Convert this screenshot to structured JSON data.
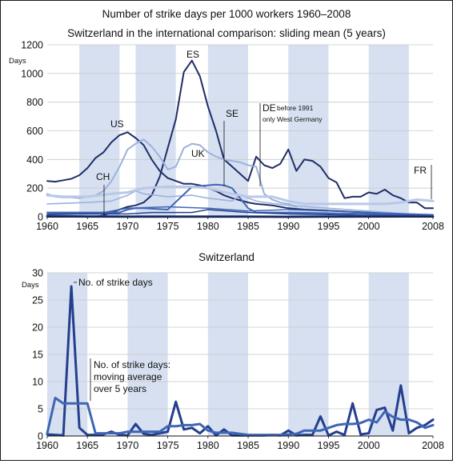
{
  "title_line1": "Number of strike days per 1000 workers 1960–2008",
  "title_line2": "Switzerland in the international comparison: sliding mean (5 years)",
  "colors": {
    "band": "#d7e0f1",
    "grid": "#c9c9c9",
    "dark_navy": "#1f2f66",
    "navy": "#233f8e",
    "mid_blue": "#3f66b4",
    "light_blue": "#9bb2dd",
    "pale_blue": "#b9c8e8"
  },
  "chart_data": [
    {
      "type": "line",
      "title": "",
      "ylabel": "Days",
      "ylim": [
        0,
        1200
      ],
      "xlim": [
        1960,
        2008
      ],
      "y_ticks": [
        "0",
        "200",
        "400",
        "600",
        "800",
        "1000",
        "1200"
      ],
      "x_ticks": [
        "1960",
        "1965",
        "1970",
        "1975",
        "1980",
        "1985",
        "1990",
        "1995",
        "2000",
        "2008"
      ],
      "shaded_bands": [
        [
          1964,
          1969
        ],
        [
          1971,
          1976
        ],
        [
          1980,
          1985
        ],
        [
          1990,
          1995
        ],
        [
          2000,
          2005
        ]
      ],
      "series": [
        {
          "name": "US",
          "color": "dark_navy",
          "x": [
            1960,
            1961,
            1962,
            1963,
            1964,
            1965,
            1966,
            1967,
            1968,
            1969,
            1970,
            1971,
            1972,
            1973,
            1974,
            1975,
            1976,
            1977,
            1978,
            1979,
            1980,
            1981,
            1982,
            1983,
            1984,
            1985,
            1986,
            1987,
            1988,
            1989,
            1990,
            1992,
            1994,
            1996,
            1998,
            2000,
            2002,
            2004,
            2006,
            2008
          ],
          "y": [
            250,
            245,
            255,
            265,
            290,
            340,
            410,
            450,
            520,
            570,
            590,
            550,
            500,
            400,
            320,
            270,
            250,
            230,
            230,
            220,
            200,
            180,
            150,
            130,
            115,
            100,
            90,
            85,
            80,
            70,
            60,
            50,
            45,
            40,
            35,
            30,
            25,
            20,
            15,
            12
          ]
        },
        {
          "name": "ES",
          "color": "dark_navy",
          "x": [
            1960,
            1966,
            1967,
            1968,
            1969,
            1970,
            1971,
            1972,
            1973,
            1974,
            1975,
            1976,
            1977,
            1978,
            1979,
            1980,
            1981,
            1982,
            1983,
            1984,
            1985,
            1986,
            1987,
            1988,
            1989,
            1990,
            1991,
            1992,
            1993,
            1994,
            1995,
            1996,
            1997,
            1998,
            1999,
            2000,
            2001,
            2002,
            2003,
            2004,
            2005,
            2006,
            2007,
            2008
          ],
          "y": [
            0,
            0,
            10,
            30,
            50,
            70,
            80,
            100,
            150,
            280,
            480,
            680,
            1010,
            1090,
            980,
            770,
            600,
            400,
            350,
            300,
            250,
            420,
            360,
            340,
            370,
            470,
            320,
            400,
            390,
            350,
            270,
            240,
            130,
            140,
            140,
            170,
            160,
            190,
            150,
            130,
            100,
            100,
            60,
            60
          ]
        },
        {
          "name": "UK",
          "color": "light_blue",
          "x": [
            1960,
            1961,
            1962,
            1963,
            1964,
            1965,
            1966,
            1967,
            1968,
            1969,
            1970,
            1971,
            1972,
            1973,
            1974,
            1975,
            1976,
            1977,
            1978,
            1979,
            1980,
            1981,
            1982,
            1983,
            1984,
            1985,
            1986,
            1987,
            1988,
            1989,
            1990,
            1991
          ],
          "y": [
            160,
            140,
            135,
            135,
            130,
            140,
            150,
            180,
            250,
            350,
            470,
            510,
            540,
            490,
            420,
            330,
            350,
            480,
            510,
            500,
            450,
            420,
            400,
            390,
            380,
            360,
            350,
            160,
            120,
            100,
            90,
            70
          ]
        },
        {
          "name": "DE before 1991 only West Germany",
          "color": "light_blue",
          "x": [
            1960,
            1965,
            1968,
            1970,
            1971,
            1972,
            1975,
            1978,
            1980,
            1983,
            1984,
            1985,
            1986,
            1987,
            1990,
            1995,
            2000,
            2005,
            2008
          ],
          "y": [
            90,
            100,
            110,
            150,
            180,
            160,
            140,
            150,
            130,
            110,
            150,
            130,
            110,
            100,
            80,
            60,
            40,
            20,
            15
          ]
        },
        {
          "name": "SE",
          "color": "mid_blue",
          "x": [
            1960,
            1965,
            1969,
            1970,
            1971,
            1972,
            1975,
            1978,
            1980,
            1981,
            1982,
            1983,
            1984,
            1985,
            1986,
            1990,
            1995,
            2000,
            2005,
            2008
          ],
          "y": [
            30,
            30,
            30,
            50,
            60,
            60,
            50,
            210,
            220,
            225,
            220,
            200,
            130,
            60,
            30,
            30,
            25,
            20,
            15,
            10
          ]
        },
        {
          "name": "FR",
          "color": "pale_blue",
          "x": [
            1960,
            1962,
            1965,
            1968,
            1970,
            1972,
            1975,
            1978,
            1980,
            1983,
            1985,
            1988,
            1990,
            1992,
            1995,
            1998,
            2000,
            2002,
            2004,
            2006,
            2008
          ],
          "y": [
            150,
            140,
            140,
            160,
            170,
            200,
            210,
            210,
            200,
            160,
            140,
            140,
            110,
            90,
            90,
            90,
            90,
            90,
            100,
            120,
            110
          ]
        },
        {
          "name": "CH",
          "color": "navy",
          "x": [
            1960,
            1965,
            1970,
            1975,
            1980,
            1985,
            1990,
            1995,
            2000,
            2005,
            2008
          ],
          "y": [
            4,
            2,
            1,
            1,
            1,
            1,
            0,
            1,
            2,
            3,
            2
          ]
        },
        {
          "name": "",
          "color": "mid_blue",
          "x": [
            1960,
            1964,
            1967,
            1970,
            1975,
            1980,
            1985,
            1990,
            1995,
            2000,
            2005,
            2008
          ],
          "y": [
            20,
            25,
            30,
            60,
            70,
            60,
            40,
            50,
            40,
            30,
            20,
            15
          ]
        },
        {
          "name": "",
          "color": "navy",
          "x": [
            1960,
            1965,
            1970,
            1973,
            1975,
            1978,
            1980,
            1985,
            1990,
            1995,
            2000,
            2005,
            2008
          ],
          "y": [
            15,
            20,
            20,
            30,
            30,
            30,
            50,
            30,
            20,
            15,
            10,
            10,
            5
          ]
        }
      ],
      "annotations": [
        "ES",
        "US",
        "UK",
        "SE",
        "CH",
        "FR"
      ],
      "de_label_main": "DE",
      "de_label_small1": "before 1991",
      "de_label_small2": "only West Germany"
    },
    {
      "type": "line",
      "title": "Switzerland",
      "ylabel": "Days",
      "ylim": [
        0,
        30
      ],
      "xlim": [
        1960,
        2008
      ],
      "y_ticks": [
        "0",
        "5",
        "10",
        "15",
        "20",
        "25",
        "30"
      ],
      "x_ticks": [
        "1960",
        "1965",
        "1970",
        "1975",
        "1980",
        "1985",
        "1990",
        "1995",
        "2000",
        "2008"
      ],
      "shaded_bands": [
        [
          1960,
          1965
        ],
        [
          1970,
          1975
        ],
        [
          1980,
          1985
        ],
        [
          1990,
          1995
        ],
        [
          2000,
          2005
        ]
      ],
      "series": [
        {
          "name": "No. of strike days",
          "color": "navy",
          "x": [
            1960,
            1961,
            1962,
            1963,
            1964,
            1965,
            1966,
            1967,
            1968,
            1969,
            1970,
            1971,
            1972,
            1973,
            1974,
            1975,
            1976,
            1977,
            1978,
            1979,
            1980,
            1981,
            1982,
            1983,
            1984,
            1985,
            1986,
            1987,
            1988,
            1989,
            1990,
            1991,
            1992,
            1993,
            1994,
            1995,
            1996,
            1997,
            1998,
            1999,
            2000,
            2001,
            2002,
            2003,
            2004,
            2005,
            2006,
            2007,
            2008
          ],
          "y": [
            0.3,
            0.2,
            0.1,
            27.5,
            1.5,
            0.2,
            0.2,
            0.3,
            0.8,
            0.2,
            0.1,
            2.2,
            0.4,
            0.2,
            0.5,
            0.8,
            6.3,
            1.2,
            1.5,
            0.5,
            1.8,
            0.1,
            1.2,
            0.1,
            0.1,
            0.1,
            0.1,
            0.1,
            0.2,
            0.1,
            1.0,
            0.1,
            0.2,
            0.2,
            3.6,
            0.1,
            0.8,
            0.2,
            6.0,
            0.3,
            0.5,
            4.8,
            5.2,
            1.0,
            9.3,
            0.5,
            1.5,
            2.0,
            3.0
          ]
        },
        {
          "name": "No. of strike days: moving average over 5 years",
          "color": "mid_blue",
          "x": [
            1960,
            1961,
            1962,
            1963,
            1964,
            1965,
            1966,
            1967,
            1968,
            1969,
            1970,
            1971,
            1972,
            1973,
            1974,
            1975,
            1976,
            1977,
            1978,
            1979,
            1980,
            1981,
            1982,
            1983,
            1984,
            1985,
            1986,
            1987,
            1988,
            1989,
            1990,
            1991,
            1992,
            1993,
            1994,
            1995,
            1996,
            1997,
            1998,
            1999,
            2000,
            2001,
            2002,
            2003,
            2004,
            2005,
            2006,
            2007,
            2008
          ],
          "y": [
            0.5,
            7.0,
            6.0,
            6.0,
            6.0,
            6.0,
            0.5,
            0.5,
            0.5,
            0.5,
            0.8,
            0.8,
            0.8,
            0.8,
            0.8,
            1.8,
            1.8,
            2.0,
            2.0,
            2.2,
            1.0,
            0.6,
            0.6,
            0.6,
            0.4,
            0.2,
            0.2,
            0.2,
            0.2,
            0.2,
            0.3,
            0.4,
            1.0,
            1.0,
            1.0,
            1.5,
            2.0,
            2.2,
            2.2,
            2.4,
            3.0,
            2.5,
            4.5,
            3.5,
            3.0,
            3.0,
            2.5,
            1.5,
            2.0
          ]
        }
      ],
      "annotation_spikes": "No. of strike days",
      "annotation_avg_line1": "No. of strike days:",
      "annotation_avg_line2": "moving average",
      "annotation_avg_line3": "over 5 years"
    }
  ]
}
